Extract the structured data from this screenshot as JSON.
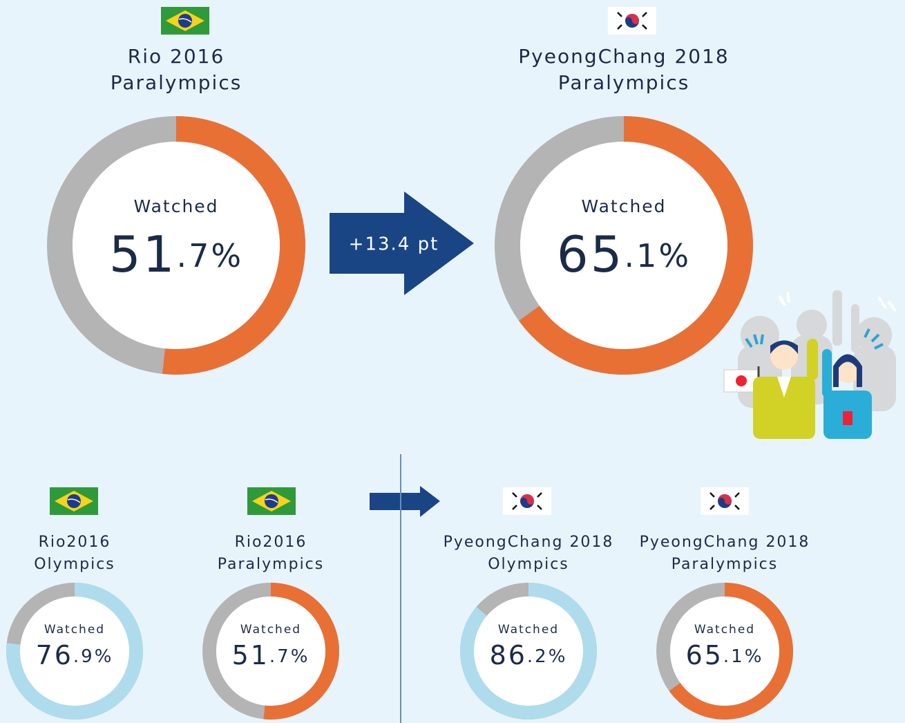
{
  "arrow_label": "+13.4 pt",
  "chart_data": [
    {
      "type": "donut",
      "title": [
        "Rio 2016",
        "Paralympics"
      ],
      "center_label": "Watched",
      "values": [
        51.7
      ],
      "value_labels": [
        "51.7%"
      ],
      "ylim": [
        0,
        100
      ],
      "color": "#e87035",
      "track_color": "#b4b4b4"
    },
    {
      "type": "donut",
      "title": [
        "PyeongChang 2018",
        "Paralympics"
      ],
      "center_label": "Watched",
      "values": [
        65.1
      ],
      "value_labels": [
        "65.1%"
      ],
      "ylim": [
        0,
        100
      ],
      "color": "#e87035",
      "track_color": "#b4b4b4"
    },
    {
      "type": "donut",
      "title": [
        "Rio2016",
        "Olympics"
      ],
      "center_label": "Watched",
      "values": [
        76.9
      ],
      "value_labels": [
        "76.9%"
      ],
      "ylim": [
        0,
        100
      ],
      "color": "#aedcec",
      "track_color": "#b4b4b4"
    },
    {
      "type": "donut",
      "title": [
        "Rio2016",
        "Paralympics"
      ],
      "center_label": "Watched",
      "values": [
        51.7
      ],
      "value_labels": [
        "51.7%"
      ],
      "ylim": [
        0,
        100
      ],
      "color": "#e87035",
      "track_color": "#b4b4b4"
    },
    {
      "type": "donut",
      "title": [
        "PyeongChang 2018",
        "Olympics"
      ],
      "center_label": "Watched",
      "values": [
        86.2
      ],
      "value_labels": [
        "86.2%"
      ],
      "ylim": [
        0,
        100
      ],
      "color": "#aedcec",
      "track_color": "#b4b4b4"
    },
    {
      "type": "donut",
      "title": [
        "PyeongChang 2018",
        "Paralympics"
      ],
      "center_label": "Watched",
      "values": [
        65.1
      ],
      "value_labels": [
        "65.1%"
      ],
      "ylim": [
        0,
        100
      ],
      "color": "#e87035",
      "track_color": "#b4b4b4"
    }
  ]
}
